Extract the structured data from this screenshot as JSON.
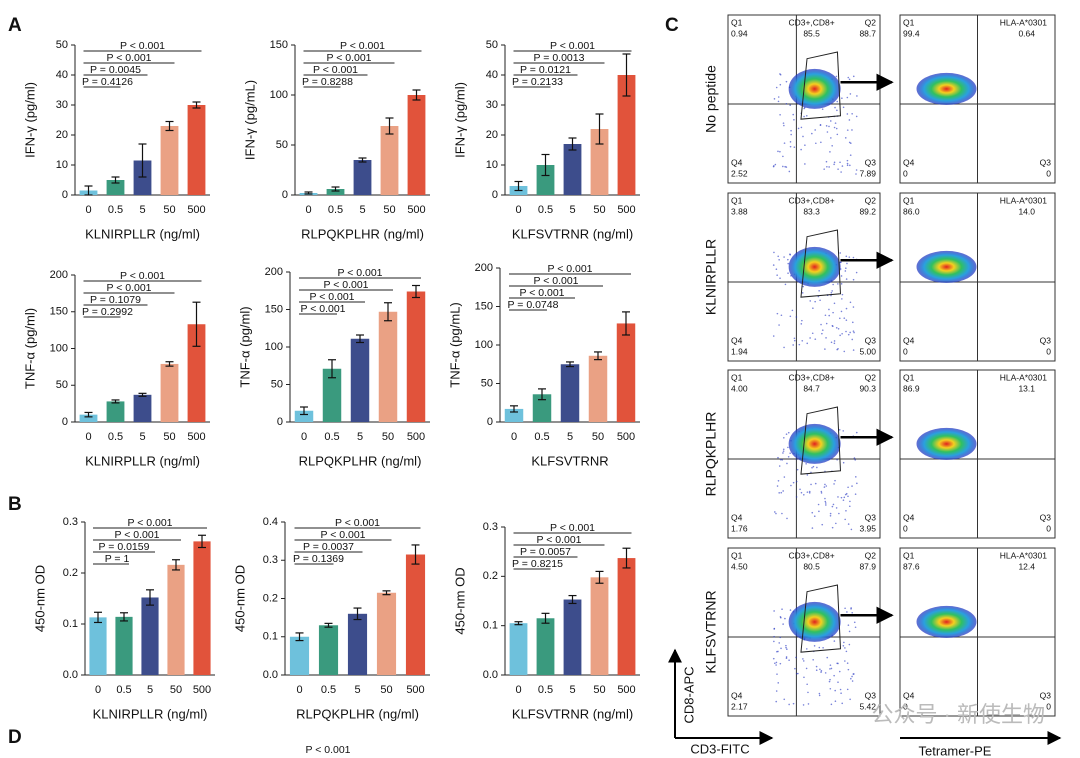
{
  "panels": [
    "A",
    "B",
    "C",
    "D"
  ],
  "panel_d": {
    "text": "P < 0.001"
  },
  "watermark": "公众号 · 新使生物",
  "chart_data": [
    {
      "type": "bar",
      "ylabel": "IFN-γ (pg/ml)",
      "xlabel": "KLNIRPLLR (ng/ml)",
      "categories": [
        "0",
        "0.5",
        "5",
        "50",
        "500"
      ],
      "values": [
        1.5,
        5,
        11.5,
        23,
        30
      ],
      "errors": [
        1.5,
        1,
        5.5,
        1.5,
        1
      ],
      "colors": [
        "#6ec1dc",
        "#3a9a7e",
        "#3d4d8c",
        "#eaa184",
        "#e1533b"
      ],
      "ylim": [
        0,
        50
      ],
      "yticks": [
        0,
        10,
        20,
        30,
        40,
        50
      ],
      "annotations": [
        "P = 0.4126",
        "P = 0.0045",
        "P < 0.001",
        "P < 0.001"
      ]
    },
    {
      "type": "bar",
      "ylabel": "IFN-γ (pg/mL)",
      "xlabel": "RLPQKPLHR (ng/ml)",
      "categories": [
        "0",
        "0.5",
        "5",
        "50",
        "500"
      ],
      "values": [
        2,
        6,
        35,
        69,
        100
      ],
      "errors": [
        1,
        2,
        2,
        8,
        5
      ],
      "colors": [
        "#6ec1dc",
        "#3a9a7e",
        "#3d4d8c",
        "#eaa184",
        "#e1533b"
      ],
      "ylim": [
        0,
        150
      ],
      "yticks": [
        0,
        50,
        100,
        150
      ],
      "annotations": [
        "P = 0.8288",
        "P < 0.001",
        "P < 0.001",
        "P < 0.001"
      ]
    },
    {
      "type": "bar",
      "ylabel": "IFN-γ (pg/ml)",
      "xlabel": "KLFSVTRNR (ng/ml)",
      "categories": [
        "0",
        "0.5",
        "5",
        "50",
        "500"
      ],
      "values": [
        3,
        10,
        17,
        22,
        40
      ],
      "errors": [
        1.5,
        3.5,
        2,
        5,
        7
      ],
      "colors": [
        "#6ec1dc",
        "#3a9a7e",
        "#3d4d8c",
        "#eaa184",
        "#e1533b"
      ],
      "ylim": [
        0,
        50
      ],
      "yticks": [
        0,
        10,
        20,
        30,
        40,
        50
      ],
      "annotations": [
        "P = 0.2133",
        "P = 0.0121",
        "P = 0.0013",
        "P < 0.001"
      ]
    },
    {
      "type": "bar",
      "ylabel": "TNF-α (pg/ml)",
      "xlabel": "KLNIRPLLR  (ng/ml)",
      "categories": [
        "0",
        "0.5",
        "5",
        "50",
        "500"
      ],
      "values": [
        10,
        28,
        37,
        79,
        133
      ],
      "errors": [
        3,
        2,
        2,
        3,
        30
      ],
      "colors": [
        "#6ec1dc",
        "#3a9a7e",
        "#3d4d8c",
        "#eaa184",
        "#e1533b"
      ],
      "ylim": [
        0,
        200
      ],
      "yticks": [
        0,
        50,
        100,
        150,
        200
      ],
      "annotations": [
        "P = 0.2992",
        "P = 0.1079",
        "P < 0.001",
        "P < 0.001"
      ]
    },
    {
      "type": "bar",
      "ylabel": "TNF-α (pg/ml)",
      "xlabel": "RLPQKPLHR  (ng/ml)",
      "categories": [
        "0",
        "0.5",
        "5",
        "50",
        "500"
      ],
      "values": [
        15,
        71,
        111,
        147,
        174
      ],
      "errors": [
        5,
        12,
        5,
        12,
        8
      ],
      "colors": [
        "#6ec1dc",
        "#3a9a7e",
        "#3d4d8c",
        "#eaa184",
        "#e1533b"
      ],
      "ylim": [
        0,
        200
      ],
      "yticks": [
        0,
        50,
        100,
        150,
        200
      ],
      "annotations": [
        "P < 0.001",
        "P < 0.001",
        "P < 0.001",
        "P < 0.001"
      ]
    },
    {
      "type": "bar",
      "ylabel": "TNF-α (pg/mL)",
      "xlabel": "KLFSVTRNR",
      "categories": [
        "0",
        "0.5",
        "5",
        "50",
        "500"
      ],
      "values": [
        17,
        36,
        75,
        86,
        128
      ],
      "errors": [
        4,
        7,
        3,
        5,
        15
      ],
      "colors": [
        "#6ec1dc",
        "#3a9a7e",
        "#3d4d8c",
        "#eaa184",
        "#e1533b"
      ],
      "ylim": [
        0,
        200
      ],
      "yticks": [
        0,
        50,
        100,
        150,
        200
      ],
      "annotations": [
        "P = 0.0748",
        "P < 0.001",
        "P < 0.001",
        "P < 0.001"
      ]
    },
    {
      "type": "bar",
      "ylabel": "450-nm OD",
      "xlabel": "KLNIRPLLR  (ng/ml)",
      "categories": [
        "0",
        "0.5",
        "5",
        "50",
        "500"
      ],
      "values": [
        0.113,
        0.114,
        0.152,
        0.216,
        0.262
      ],
      "errors": [
        0.01,
        0.008,
        0.015,
        0.01,
        0.012
      ],
      "colors": [
        "#6ec1dc",
        "#3a9a7e",
        "#3d4d8c",
        "#eaa184",
        "#e1533b"
      ],
      "ylim": [
        0,
        0.3
      ],
      "yticks": [
        {
          "value": 0,
          "label": "0.0"
        },
        0.1,
        0.2,
        0.3
      ],
      "annotations": [
        "P = 1",
        "P = 0.0159",
        "P < 0.001",
        "P < 0.001"
      ]
    },
    {
      "type": "bar",
      "ylabel": "450-nm OD",
      "xlabel": "RLPQKPLHR  (ng/ml)",
      "categories": [
        "0",
        "0.5",
        "5",
        "50",
        "500"
      ],
      "values": [
        0.1,
        0.13,
        0.16,
        0.215,
        0.315
      ],
      "errors": [
        0.01,
        0.005,
        0.015,
        0.005,
        0.025
      ],
      "colors": [
        "#6ec1dc",
        "#3a9a7e",
        "#3d4d8c",
        "#eaa184",
        "#e1533b"
      ],
      "ylim": [
        0,
        0.4
      ],
      "yticks": [
        {
          "value": 0,
          "label": "0.0"
        },
        0.1,
        0.2,
        0.3,
        0.4
      ],
      "annotations": [
        "P = 0.1369",
        "P = 0.0037",
        "P < 0.001",
        "P < 0.001"
      ]
    },
    {
      "type": "bar",
      "ylabel": "450-nm OD",
      "xlabel": "KLFSVTRNR  (ng/ml)",
      "categories": [
        "0",
        "0.5",
        "5",
        "50",
        "500"
      ],
      "values": [
        0.105,
        0.115,
        0.153,
        0.198,
        0.237
      ],
      "errors": [
        0.003,
        0.01,
        0.008,
        0.012,
        0.02
      ],
      "colors": [
        "#6ec1dc",
        "#3a9a7e",
        "#3d4d8c",
        "#eaa184",
        "#e1533b"
      ],
      "ylim": [
        0,
        0.3
      ],
      "yticks": [
        {
          "value": 0,
          "label": "0.0"
        },
        0.1,
        0.2,
        0.3
      ],
      "annotations": [
        "P = 0.8215",
        "P = 0.0057",
        "P < 0.001",
        "P < 0.001"
      ]
    }
  ],
  "flow": {
    "quadrant_names": [
      "Q1",
      "Q2",
      "Q3",
      "Q4"
    ],
    "y_label": "CD8-APC",
    "x_label_left": "CD3-FITC",
    "x_label_right": "Tetramer-PE",
    "rows": [
      {
        "label": "No peptide",
        "left": {
          "q1": "0.94",
          "gate_label": "CD3+,CD8+",
          "gate": "85.5",
          "q2": "88.7",
          "q3": "7.89",
          "q4": "2.52"
        },
        "right": {
          "q1": "99.4",
          "q2_label": "HLA-A*0301",
          "q2": "0.64",
          "q3": "0",
          "q4": "0"
        }
      },
      {
        "label": "KLNIRPLLR",
        "left": {
          "q1": "3.88",
          "gate_label": "CD3+,CD8+",
          "gate": "83.3",
          "q2": "89.2",
          "q3": "5.00",
          "q4": "1.94"
        },
        "right": {
          "q1": "86.0",
          "q2_label": "HLA-A*0301",
          "q2": "14.0",
          "q3": "0",
          "q4": "0"
        }
      },
      {
        "label": "RLPQKPLHR",
        "left": {
          "q1": "4.00",
          "gate_label": "CD3+,CD8+",
          "gate": "84.7",
          "q2": "90.3",
          "q3": "3.95",
          "q4": "1.76"
        },
        "right": {
          "q1": "86.9",
          "q2_label": "HLA-A*0301",
          "q2": "13.1",
          "q3": "0",
          "q4": "0"
        }
      },
      {
        "label": "KLFSVTRNR",
        "left": {
          "q1": "4.50",
          "gate_label": "CD3+,CD8+",
          "gate": "80.5",
          "q2": "87.9",
          "q3": "5.42",
          "q4": "2.17"
        },
        "right": {
          "q1": "87.6",
          "q2_label": "HLA-A*0301",
          "q2": "12.4",
          "q3": "0",
          "q4": "0"
        }
      }
    ]
  }
}
